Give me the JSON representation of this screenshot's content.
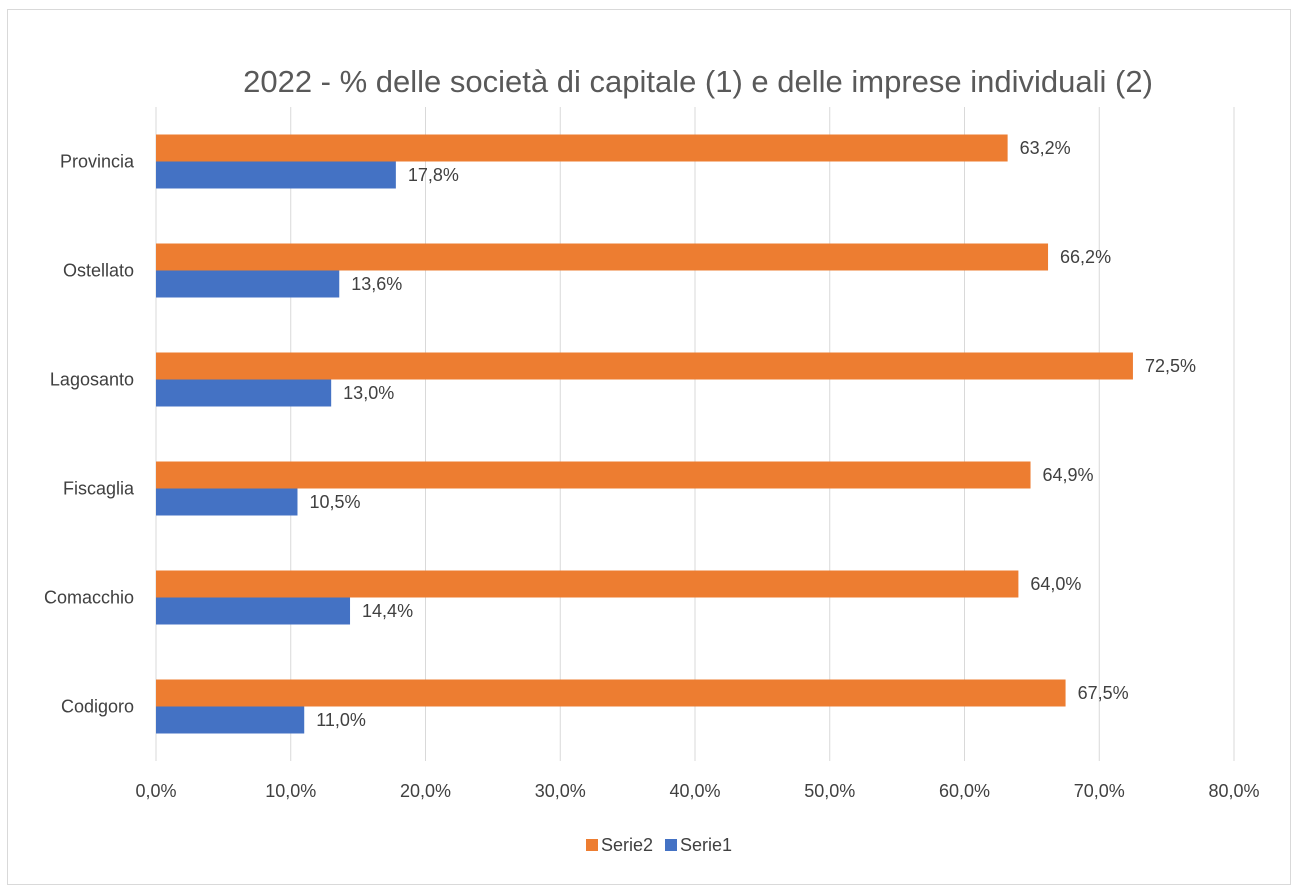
{
  "chart_data": {
    "type": "bar",
    "orientation": "horizontal",
    "title": "2022 - % delle società di capitale (1) e delle imprese individuali (2)",
    "categories": [
      "Codigoro",
      "Comacchio",
      "Fiscaglia",
      "Lagosanto",
      "Ostellato",
      "Provincia"
    ],
    "series": [
      {
        "name": "Serie1",
        "color": "#4472c4",
        "values": [
          11.0,
          14.4,
          10.5,
          13.0,
          13.6,
          17.8
        ],
        "labels": [
          "11,0%",
          "14,4%",
          "10,5%",
          "13,0%",
          "13,6%",
          "17,8%"
        ]
      },
      {
        "name": "Serie2",
        "color": "#ed7d31",
        "values": [
          67.5,
          64.0,
          64.9,
          72.5,
          66.2,
          63.2
        ],
        "labels": [
          "67,5%",
          "64,0%",
          "64,9%",
          "72,5%",
          "66,2%",
          "63,2%"
        ]
      }
    ],
    "xlim": [
      0,
      80
    ],
    "xticks": [
      0,
      10,
      20,
      30,
      40,
      50,
      60,
      70,
      80
    ],
    "xtick_labels": [
      "0,0%",
      "10,0%",
      "20,0%",
      "30,0%",
      "40,0%",
      "50,0%",
      "60,0%",
      "70,0%",
      "80,0%"
    ],
    "legend": {
      "position": "bottom",
      "entries": [
        "Serie2",
        "Serie1"
      ]
    },
    "grid": "vertical"
  }
}
